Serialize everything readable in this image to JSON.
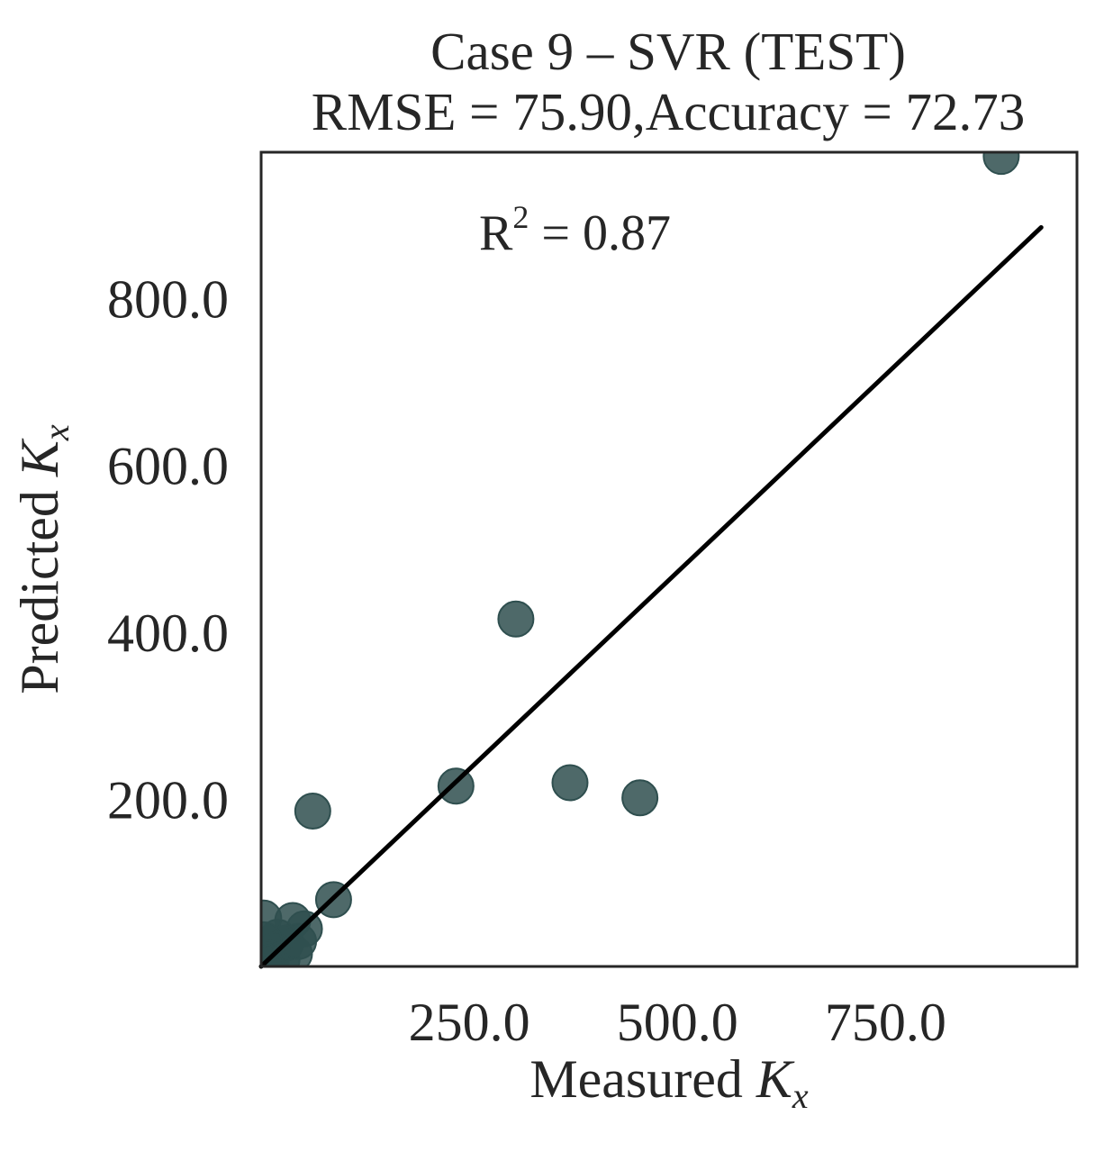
{
  "chart_data": {
    "type": "scatter",
    "title_line1": "Case 9 – SVR (TEST)",
    "title_line2": "RMSE = 75.90,Accuracy = 72.73",
    "xlabel": "Measured ",
    "ylabel": "Predicted ",
    "label_var": "K",
    "label_sub": "x",
    "annotation": {
      "r_label": "R",
      "r_sup": "2",
      "r_text": " = 0.87"
    },
    "xlim": [
      0,
      980
    ],
    "ylim": [
      0,
      975
    ],
    "x_ticks": [
      250,
      500,
      750
    ],
    "x_tick_labels": [
      "250.0",
      "500.0",
      "750.0"
    ],
    "y_ticks": [
      200,
      400,
      600,
      800
    ],
    "y_tick_labels": [
      "200.0",
      "400.0",
      "600.0",
      "800.0"
    ],
    "grid": false,
    "fit_line": {
      "x": [
        0,
        937
      ],
      "y": [
        0,
        885
      ]
    },
    "point_color": "#2f4f4f",
    "line_color": "#000000",
    "points": [
      {
        "x": 889,
        "y": 970
      },
      {
        "x": 306,
        "y": 416
      },
      {
        "x": 234,
        "y": 216
      },
      {
        "x": 371,
        "y": 220
      },
      {
        "x": 455,
        "y": 202
      },
      {
        "x": 62,
        "y": 186
      },
      {
        "x": 87,
        "y": 80
      },
      {
        "x": 52,
        "y": 45
      },
      {
        "x": 38,
        "y": 55
      },
      {
        "x": 30,
        "y": 28
      },
      {
        "x": 20,
        "y": 35
      },
      {
        "x": 15,
        "y": 20
      },
      {
        "x": 8,
        "y": 10
      },
      {
        "x": 3,
        "y": 58
      },
      {
        "x": 3,
        "y": 32
      },
      {
        "x": 5,
        "y": 3
      },
      {
        "x": 12,
        "y": 5
      },
      {
        "x": 25,
        "y": 8
      },
      {
        "x": 40,
        "y": 15
      },
      {
        "x": 45,
        "y": 30
      }
    ]
  }
}
